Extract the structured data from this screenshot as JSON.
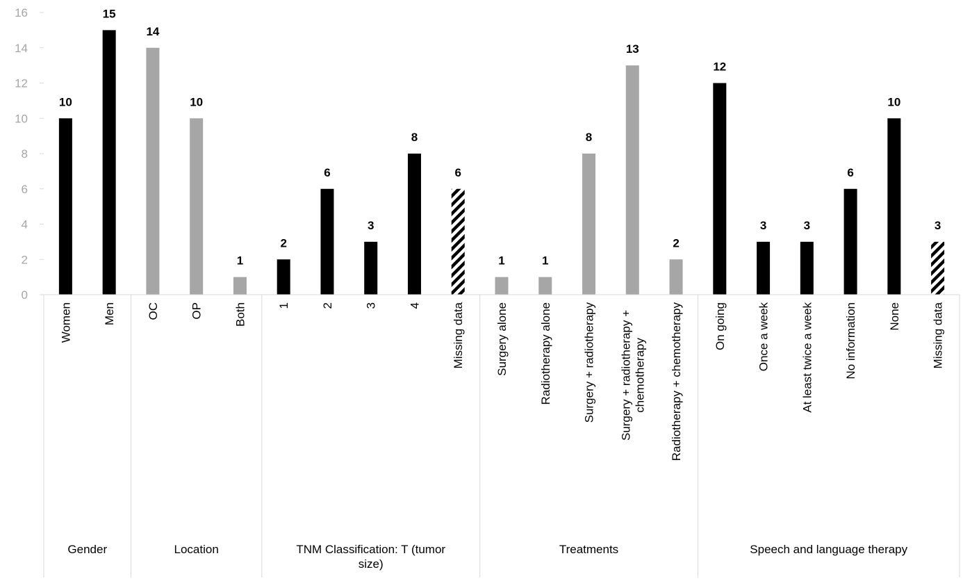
{
  "chart_data": {
    "type": "bar",
    "title": "",
    "xlabel": "",
    "ylabel": "",
    "ylim": [
      0,
      16
    ],
    "yticks": [
      0,
      2,
      4,
      6,
      8,
      10,
      12,
      14,
      16
    ],
    "grid": false,
    "legend": "none",
    "colors": {
      "black": "#000000",
      "gray": "#a6a6a6",
      "hatched": "#000000"
    },
    "groups": [
      {
        "label": "Gender",
        "bars": [
          {
            "category": "Women",
            "value": 10,
            "style": "black"
          },
          {
            "category": "Men",
            "value": 15,
            "style": "black"
          }
        ]
      },
      {
        "label": "Location",
        "bars": [
          {
            "category": "OC",
            "value": 14,
            "style": "gray"
          },
          {
            "category": "OP",
            "value": 10,
            "style": "gray"
          },
          {
            "category": "Both",
            "value": 1,
            "style": "gray"
          }
        ]
      },
      {
        "label": "TNM Classification: T (tumor size)",
        "bars": [
          {
            "category": "1",
            "value": 2,
            "style": "black"
          },
          {
            "category": "2",
            "value": 6,
            "style": "black"
          },
          {
            "category": "3",
            "value": 3,
            "style": "black"
          },
          {
            "category": "4",
            "value": 8,
            "style": "black"
          },
          {
            "category": "Missing data",
            "value": 6,
            "style": "hatched"
          }
        ]
      },
      {
        "label": "Treatments",
        "bars": [
          {
            "category": "Surgery alone",
            "value": 1,
            "style": "gray"
          },
          {
            "category": "Radiotherapy alone",
            "value": 1,
            "style": "gray"
          },
          {
            "category": "Surgery + radiotherapy",
            "value": 8,
            "style": "gray"
          },
          {
            "category": "Surgery + radiotherapy + chemotherapy",
            "value": 13,
            "style": "gray"
          },
          {
            "category": "Radiotherapy + chemotherapy",
            "value": 2,
            "style": "gray"
          }
        ]
      },
      {
        "label": "Speech and language therapy",
        "bars": [
          {
            "category": "On going",
            "value": 12,
            "style": "black"
          },
          {
            "category": "Once a week",
            "value": 3,
            "style": "black"
          },
          {
            "category": "At least twice a week",
            "value": 3,
            "style": "black"
          },
          {
            "category": "No information",
            "value": 6,
            "style": "black"
          },
          {
            "category": "None",
            "value": 10,
            "style": "black"
          },
          {
            "category": "Missing data",
            "value": 3,
            "style": "hatched"
          }
        ]
      }
    ]
  }
}
